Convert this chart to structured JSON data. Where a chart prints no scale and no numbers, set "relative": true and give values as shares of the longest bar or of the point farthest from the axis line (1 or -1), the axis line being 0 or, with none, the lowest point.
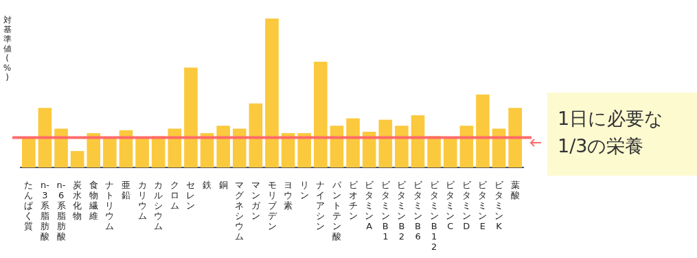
{
  "chart_data": {
    "type": "bar",
    "relative": true,
    "ylabel": "対基準値(%)",
    "categories": [
      "たんぱく質",
      "n-3系脂肪酸",
      "n-6系脂肪酸",
      "炭水化物",
      "食物繊維",
      "ナトリウム",
      "亜鉛",
      "カリウム",
      "カルシウム",
      "クロム",
      "セレン",
      "鉄",
      "銅",
      "マグネシウム",
      "マンガン",
      "モリブデン",
      "ヨウ素",
      "リン",
      "ナイアシン",
      "パントテン酸",
      "ビオチン",
      "ビタミンA",
      "ビタミンB1",
      "ビタミンB2",
      "ビタミンB6",
      "ビタミンB12",
      "ビタミンC",
      "ビタミンD",
      "ビタミンE",
      "ビタミンK",
      "葉酸"
    ],
    "values": [
      0.2,
      0.4,
      0.26,
      0.11,
      0.23,
      0.2,
      0.25,
      0.2,
      0.21,
      0.26,
      0.67,
      0.23,
      0.28,
      0.26,
      0.43,
      1,
      0.23,
      0.23,
      0.71,
      0.28,
      0.33,
      0.24,
      0.32,
      0.28,
      0.35,
      0.21,
      0.2,
      0.28,
      0.49,
      0.26,
      0.4
    ],
    "color": "#fbc93d",
    "ref_lines": [
      {
        "axis": "y",
        "value": 0.2,
        "label": "1日に必要な\n1/3の栄養",
        "color": "#ff6b6b"
      }
    ]
  }
}
